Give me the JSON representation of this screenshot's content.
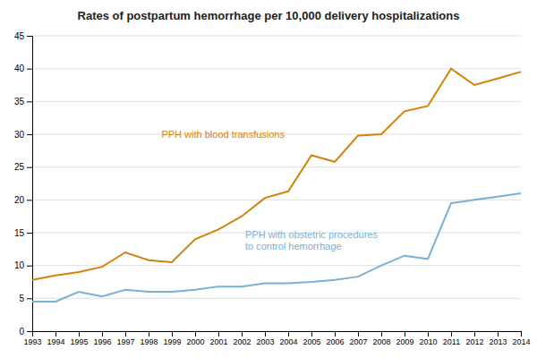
{
  "chart_data": {
    "type": "line",
    "title": "Rates of postpartum hemorrhage per 10,000 delivery hospitalizations",
    "x": [
      1993,
      1994,
      1995,
      1996,
      1997,
      1998,
      1999,
      2000,
      2001,
      2002,
      2003,
      2004,
      2005,
      2006,
      2007,
      2008,
      2009,
      2010,
      2011,
      2012,
      2013,
      2014
    ],
    "series": [
      {
        "name": "PPH with blood transfusions",
        "color": "#D4820A",
        "values": [
          7.8,
          8.5,
          9.0,
          9.8,
          12.0,
          10.8,
          10.5,
          14.0,
          15.5,
          17.5,
          20.3,
          21.3,
          26.8,
          25.8,
          29.8,
          30.0,
          33.5,
          34.3,
          40.0,
          37.5,
          38.5,
          39.5
        ]
      },
      {
        "name": "PPH with obstetric procedures\nto control hemorrhage",
        "color": "#7BAFD4",
        "values": [
          4.5,
          4.5,
          6.0,
          5.3,
          6.3,
          6.0,
          6.0,
          6.3,
          6.8,
          6.8,
          7.3,
          7.3,
          7.5,
          7.8,
          8.3,
          10.0,
          11.5,
          11.0,
          19.5,
          20.0,
          20.5,
          21.0
        ]
      }
    ],
    "xlim": [
      1993,
      2014
    ],
    "xticks": [
      1993,
      1994,
      1995,
      1996,
      1997,
      1998,
      1999,
      2000,
      2001,
      2002,
      2003,
      2004,
      2005,
      2006,
      2007,
      2008,
      2009,
      2010,
      2011,
      2012,
      2013,
      2014
    ],
    "ylim": [
      0,
      45
    ],
    "yticks": [
      0,
      5,
      10,
      15,
      20,
      25,
      30,
      35,
      40,
      45
    ],
    "grid": true
  }
}
